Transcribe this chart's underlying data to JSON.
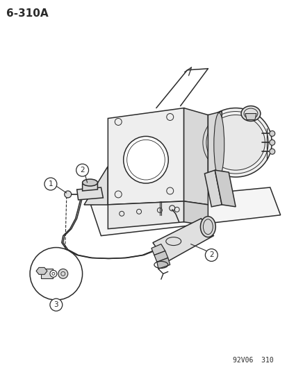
{
  "title": "6-310A",
  "footer": "92V06  310",
  "bg_color": "#ffffff",
  "line_color": "#2a2a2a",
  "title_fontsize": 11,
  "footer_fontsize": 7,
  "label1": "1",
  "label2": "2",
  "label3": "3"
}
